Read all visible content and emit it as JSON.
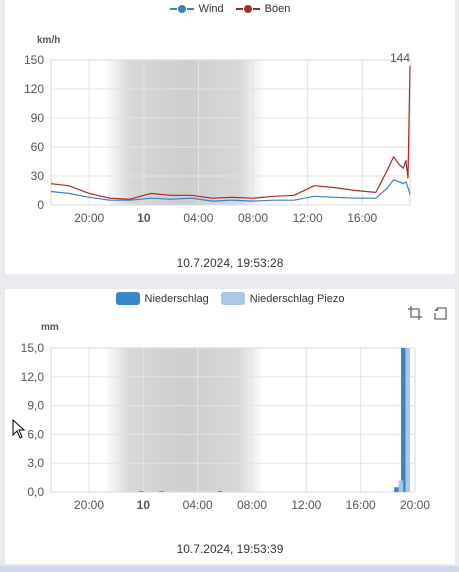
{
  "colors": {
    "wind": "#3c7fc4",
    "gusts": "#a52a2a",
    "rain": "#3d85c6",
    "rain_piezo": "#a9c7e8"
  },
  "chart_data": [
    {
      "type": "line",
      "legend_position": "top",
      "ylabel": "km/h",
      "ylim": [
        0,
        150
      ],
      "yticks": [
        "0",
        "30",
        "60",
        "90",
        "120",
        "150"
      ],
      "xticks": [
        "20:00",
        "10",
        "04:00",
        "08:00",
        "12:00",
        "16:00"
      ],
      "xticks_bold": [
        false,
        true,
        false,
        false,
        false,
        false
      ],
      "x_range_hours": [
        17.2,
        43.5
      ],
      "night_shading_hours": [
        22.0,
        32.0
      ],
      "grid": true,
      "max_label": "144",
      "timestamp": "10.7.2024, 19:53:28",
      "x_hours": [
        17.2,
        18.5,
        20,
        21.5,
        23,
        24.5,
        26,
        27.5,
        29,
        30.5,
        32,
        33.5,
        35,
        36.5,
        38,
        39.5,
        41,
        41.8,
        42.3,
        42.7,
        43.0,
        43.2,
        43.35,
        43.5
      ],
      "series": [
        {
          "name": "Wind",
          "values": [
            14,
            12,
            8,
            5,
            5,
            7,
            6,
            7,
            4,
            5,
            4,
            5,
            5,
            9,
            8,
            7,
            7,
            17,
            26,
            24,
            22,
            24,
            18,
            11
          ]
        },
        {
          "name": "Böen",
          "values": [
            22,
            20,
            12,
            7,
            6,
            12,
            10,
            10,
            7,
            8,
            7,
            9,
            10,
            20,
            18,
            15,
            13,
            35,
            50,
            42,
            38,
            46,
            28,
            144
          ]
        }
      ]
    },
    {
      "type": "bar",
      "legend_position": "top",
      "ylabel": "mm",
      "ylim": [
        0,
        15
      ],
      "yticks": [
        "0,0",
        "3,0",
        "6,0",
        "9,0",
        "12,0",
        "15,0"
      ],
      "xticks": [
        "20:00",
        "10",
        "04:00",
        "08:00",
        "12:00",
        "16:00",
        "20:00"
      ],
      "xticks_bold": [
        false,
        true,
        false,
        false,
        false,
        false,
        false
      ],
      "x_range_hours": [
        17.2,
        44.0
      ],
      "night_shading_hours": [
        22.0,
        32.0
      ],
      "grid": true,
      "timestamp": "10.7.2024, 19:53:39",
      "x_hours": [
        24.0,
        25.5,
        29.8,
        42.8,
        43.3
      ],
      "series": [
        {
          "name": "Niederschlag",
          "values": [
            0.05,
            0.05,
            0.05,
            0.5,
            15.0
          ]
        },
        {
          "name": "Niederschlag Piezo",
          "values": [
            0.0,
            0.0,
            0.0,
            1.2,
            15.0
          ]
        }
      ]
    }
  ]
}
